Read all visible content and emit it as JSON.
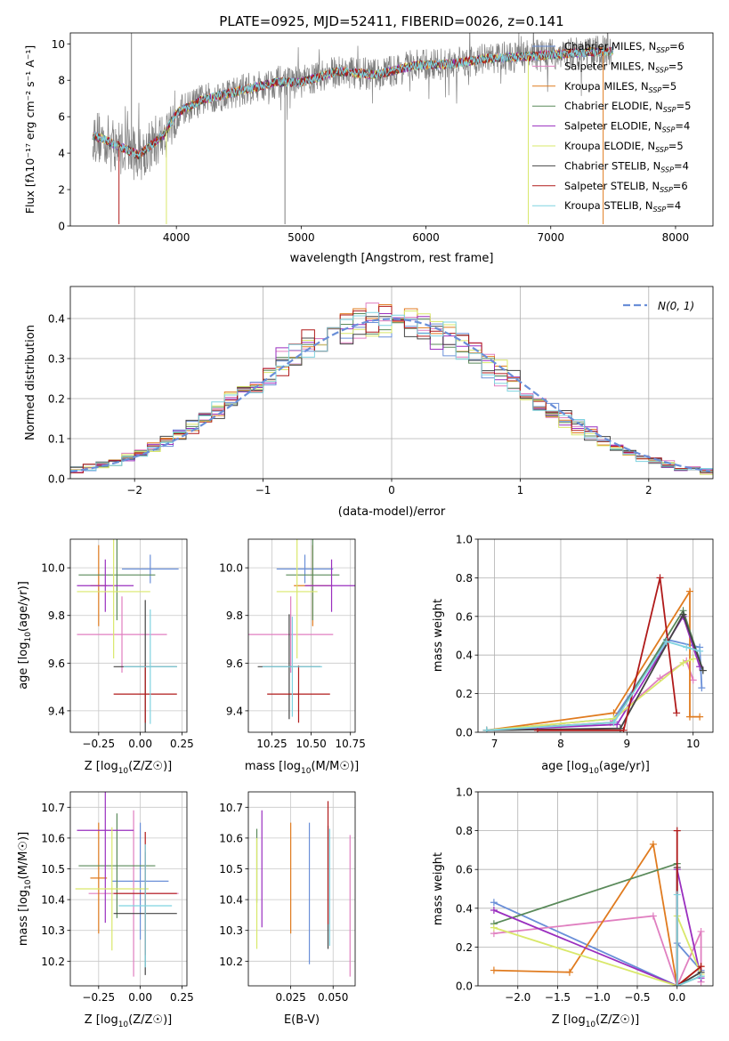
{
  "figure_title": "PLATE=0925, MJD=52411, FIBERID=0026, z=0.141",
  "colors": {
    "Chabrier MILES": "#6a8fd8",
    "Salpeter MILES": "#e07fc0",
    "Kroupa MILES": "#e07b1f",
    "Chabrier ELODIE": "#5a8a5a",
    "Salpeter ELODIE": "#9a2fbf",
    "Kroupa ELODIE": "#d9e86a",
    "Chabrier STELIB": "#444444",
    "Salpeter STELIB": "#b01a1a",
    "Kroupa STELIB": "#7fd3e0",
    "data": "#808080",
    "gaussian": "#6a8fd8"
  },
  "chart_data": [
    {
      "type": "line",
      "title": "PLATE=0925, MJD=52411, FIBERID=0026, z=0.141",
      "xlabel": "wavelength [Angstrom, rest frame]",
      "ylabel": "Flux [f_λ10^-17 erg cm^-2 s^-1 A^-1]",
      "xlim": [
        3150,
        8300
      ],
      "ylim": [
        0,
        10.6
      ],
      "xticks": [
        4000,
        5000,
        6000,
        7000,
        8000
      ],
      "yticks": [
        0,
        2,
        4,
        6,
        8,
        10
      ],
      "legend_position": "right",
      "legend": [
        {
          "base": "Chabrier MILES, N",
          "sub": "SSP",
          "tail": "=6"
        },
        {
          "base": "Salpeter MILES, N",
          "sub": "SSP",
          "tail": "=5"
        },
        {
          "base": "Kroupa MILES, N",
          "sub": "SSP",
          "tail": "=5"
        },
        {
          "base": "Chabrier ELODIE, N",
          "sub": "SSP",
          "tail": "=5"
        },
        {
          "base": "Salpeter ELODIE, N",
          "sub": "SSP",
          "tail": "=4"
        },
        {
          "base": "Kroupa ELODIE, N",
          "sub": "SSP",
          "tail": "=5"
        },
        {
          "base": "Chabrier STELIB, N",
          "sub": "SSP",
          "tail": "=4"
        },
        {
          "base": "Salpeter STELIB, N",
          "sub": "SSP",
          "tail": "=6"
        },
        {
          "base": "Kroupa STELIB, N",
          "sub": "SSP",
          "tail": "=4"
        }
      ],
      "continuum": {
        "x": [
          3330,
          3500,
          3700,
          3900,
          4000,
          4200,
          4500,
          4800,
          5000,
          5300,
          5600,
          5900,
          6200,
          6500,
          6800,
          7000,
          7200,
          7500
        ],
        "y": [
          5.0,
          4.5,
          3.9,
          5.0,
          6.2,
          6.9,
          7.4,
          7.9,
          7.9,
          8.5,
          8.3,
          8.8,
          8.9,
          9.2,
          9.3,
          9.4,
          9.5,
          9.6
        ]
      },
      "spikes": {
        "x": [
          3540,
          3640,
          3920,
          4870,
          6820,
          7420
        ],
        "y": [
          0.1,
          10.6,
          0.1,
          0.1,
          0.1,
          0.1
        ]
      }
    },
    {
      "type": "line",
      "xlabel": "(data-model)/error",
      "ylabel": "Normed distribution",
      "xlim": [
        -2.5,
        2.5
      ],
      "ylim": [
        0,
        0.48
      ],
      "xticks": [
        -2,
        -1,
        0,
        1,
        2
      ],
      "yticks": [
        0.0,
        0.1,
        0.2,
        0.3,
        0.4
      ],
      "grid": true,
      "legend_position": "top-right",
      "gaussian_label": "N(0, 1)",
      "bin_width": 0.1
    },
    {
      "type": "scatter",
      "xlabel": "Z [log10(Z/Z☉)]",
      "ylabel": "age  [log10(age/yr)]",
      "xlim": [
        -0.42,
        0.28
      ],
      "ylim": [
        9.31,
        10.12
      ],
      "xticks": [
        -0.25,
        0.0,
        0.25
      ],
      "ytick_values": [
        9.4,
        9.6,
        9.8,
        10.0
      ],
      "points": [
        {
          "model": "Chabrier MILES",
          "x": 0.06,
          "y": 9.995,
          "xerr": 0.17,
          "yerr": 0.06
        },
        {
          "model": "Salpeter MILES",
          "x": -0.11,
          "y": 9.72,
          "xerr": 0.27,
          "yerr": 0.16
        },
        {
          "model": "Kroupa MILES",
          "x": -0.25,
          "y": 9.925,
          "xerr": 0.05,
          "yerr": 0.17
        },
        {
          "model": "Chabrier ELODIE",
          "x": -0.14,
          "y": 9.97,
          "xerr": 0.23,
          "yerr": 0.19
        },
        {
          "model": "Salpeter ELODIE",
          "x": -0.21,
          "y": 9.925,
          "xerr": 0.17,
          "yerr": 0.11
        },
        {
          "model": "Kroupa ELODIE",
          "x": -0.16,
          "y": 9.9,
          "xerr": 0.22,
          "yerr": 0.28
        },
        {
          "model": "Chabrier STELIB",
          "x": 0.03,
          "y": 9.585,
          "xerr": 0.19,
          "yerr": 0.28
        },
        {
          "model": "Salpeter STELIB",
          "x": 0.03,
          "y": 9.47,
          "xerr": 0.19,
          "yerr": 0.12
        },
        {
          "model": "Kroupa STELIB",
          "x": 0.06,
          "y": 9.585,
          "xerr": 0.16,
          "yerr": 0.24
        }
      ]
    },
    {
      "type": "scatter",
      "xlabel": "mass [log10(M/M☉)]",
      "xlim": [
        10.1,
        10.78
      ],
      "ylim": [
        9.31,
        10.12
      ],
      "xticks": [
        10.25,
        10.5,
        10.75
      ],
      "ytick_values": [
        9.4,
        9.6,
        9.8,
        10.0
      ],
      "points": [
        {
          "model": "Chabrier MILES",
          "x": 10.46,
          "y": 9.995,
          "xerr": 0.18,
          "yerr": 0.06
        },
        {
          "model": "Salpeter MILES",
          "x": 10.37,
          "y": 9.72,
          "xerr": 0.27,
          "yerr": 0.16
        },
        {
          "model": "Kroupa MILES",
          "x": 10.51,
          "y": 9.925,
          "xerr": 0.12,
          "yerr": 0.17
        },
        {
          "model": "Chabrier ELODIE",
          "x": 10.51,
          "y": 9.97,
          "xerr": 0.17,
          "yerr": 0.19
        },
        {
          "model": "Salpeter ELODIE",
          "x": 10.63,
          "y": 9.925,
          "xerr": 0.17,
          "yerr": 0.11
        },
        {
          "model": "Kroupa ELODIE",
          "x": 10.41,
          "y": 9.9,
          "xerr": 0.13,
          "yerr": 0.28
        },
        {
          "model": "Chabrier STELIB",
          "x": 10.36,
          "y": 9.585,
          "xerr": 0.2,
          "yerr": 0.22
        },
        {
          "model": "Salpeter STELIB",
          "x": 10.42,
          "y": 9.47,
          "xerr": 0.2,
          "yerr": 0.12
        },
        {
          "model": "Kroupa STELIB",
          "x": 10.38,
          "y": 9.585,
          "xerr": 0.19,
          "yerr": 0.21
        }
      ]
    },
    {
      "type": "line",
      "xlabel": "age  [log10(age/yr)]",
      "ylabel": "mass weight",
      "xlim": [
        6.75,
        10.3
      ],
      "ylim": [
        0,
        1.0
      ],
      "xticks": [
        7,
        8,
        9,
        10
      ],
      "yticks": [
        0.0,
        0.2,
        0.4,
        0.6,
        0.8,
        1.0
      ],
      "grid": true,
      "series": [
        {
          "model": "Chabrier MILES",
          "x": [
            6.88,
            8.8,
            9.6,
            10.1,
            10.13
          ],
          "y": [
            0.01,
            0.07,
            0.48,
            0.44,
            0.23
          ]
        },
        {
          "model": "Salpeter MILES",
          "x": [
            6.88,
            8.75,
            9.5,
            9.9,
            10.0
          ],
          "y": [
            0.01,
            0.05,
            0.28,
            0.37,
            0.27
          ]
        },
        {
          "model": "Kroupa MILES",
          "x": [
            6.88,
            8.8,
            9.95,
            9.95,
            10.1
          ],
          "y": [
            0.01,
            0.1,
            0.73,
            0.08,
            0.08
          ]
        },
        {
          "model": "Chabrier ELODIE",
          "x": [
            6.88,
            8.8,
            9.85,
            10.15
          ],
          "y": [
            0.01,
            0.05,
            0.63,
            0.32
          ]
        },
        {
          "model": "Salpeter ELODIE",
          "x": [
            6.88,
            8.85,
            9.85,
            10.1
          ],
          "y": [
            0.01,
            0.04,
            0.6,
            0.34
          ]
        },
        {
          "model": "Kroupa ELODIE",
          "x": [
            6.88,
            8.8,
            9.85,
            10.0
          ],
          "y": [
            0.01,
            0.07,
            0.36,
            0.38
          ]
        },
        {
          "model": "Chabrier STELIB",
          "x": [
            6.88,
            8.9,
            9.85,
            10.15
          ],
          "y": [
            0.01,
            0.02,
            0.61,
            0.32
          ]
        },
        {
          "model": "Salpeter STELIB",
          "x": [
            7.65,
            8.95,
            9.5,
            9.75
          ],
          "y": [
            0.01,
            0.01,
            0.8,
            0.1
          ]
        },
        {
          "model": "Kroupa STELIB",
          "x": [
            6.88,
            8.8,
            9.6,
            9.9,
            10.1
          ],
          "y": [
            0.01,
            0.05,
            0.47,
            0.44,
            0.42
          ]
        }
      ]
    },
    {
      "type": "scatter",
      "xlabel": "Z [log10(Z/Z☉)]",
      "ylabel": "mass [log10(M/M☉)]",
      "xlim": [
        -0.42,
        0.28
      ],
      "ylim": [
        10.12,
        10.75
      ],
      "xticks": [
        -0.25,
        0.0,
        0.25
      ],
      "ytick_values": [
        10.2,
        10.3,
        10.4,
        10.5,
        10.6,
        10.7
      ],
      "points": [
        {
          "model": "Chabrier MILES",
          "x": 0.0,
          "y": 10.46,
          "xerr": 0.17,
          "yerr": 0.19
        },
        {
          "model": "Salpeter MILES",
          "x": -0.04,
          "y": 10.42,
          "xerr": 0.27,
          "yerr": 0.27
        },
        {
          "model": "Kroupa MILES",
          "x": -0.25,
          "y": 10.47,
          "xerr": 0.05,
          "yerr": 0.18
        },
        {
          "model": "Chabrier ELODIE",
          "x": -0.14,
          "y": 10.51,
          "xerr": 0.23,
          "yerr": 0.17
        },
        {
          "model": "Salpeter ELODIE",
          "x": -0.21,
          "y": 10.625,
          "xerr": 0.17,
          "yerr": 0.3
        },
        {
          "model": "Kroupa ELODIE",
          "x": -0.17,
          "y": 10.435,
          "xerr": 0.22,
          "yerr": 0.2
        },
        {
          "model": "Chabrier STELIB",
          "x": 0.03,
          "y": 10.355,
          "xerr": 0.19,
          "yerr": 0.2
        },
        {
          "model": "Salpeter STELIB",
          "x": 0.03,
          "y": 10.42,
          "xerr": 0.19,
          "yerr": 0.2
        },
        {
          "model": "Kroupa STELIB",
          "x": 0.03,
          "y": 10.38,
          "xerr": 0.16,
          "yerr": 0.2
        }
      ]
    },
    {
      "type": "scatter",
      "xlabel": "E(B-V)",
      "xlim": [
        0.0,
        0.063
      ],
      "ylim": [
        10.12,
        10.75
      ],
      "xticks": [
        0.025,
        0.05
      ],
      "ytick_values": [
        10.2,
        10.3,
        10.4,
        10.5,
        10.6,
        10.7
      ],
      "points": [
        {
          "model": "Chabrier MILES",
          "x": 0.036,
          "y": 10.42,
          "yerr": 0.23
        },
        {
          "model": "Salpeter MILES",
          "x": 0.06,
          "y": 10.38,
          "yerr": 0.23
        },
        {
          "model": "Kroupa MILES",
          "x": 0.025,
          "y": 10.47,
          "yerr": 0.18
        },
        {
          "model": "Chabrier ELODIE",
          "x": 0.005,
          "y": 10.51,
          "yerr": 0.12
        },
        {
          "model": "Salpeter ELODIE",
          "x": 0.008,
          "y": 10.5,
          "yerr": 0.19
        },
        {
          "model": "Kroupa ELODIE",
          "x": 0.005,
          "y": 10.42,
          "yerr": 0.18
        },
        {
          "model": "Chabrier STELIB",
          "x": 0.047,
          "y": 10.44,
          "yerr": 0.2
        },
        {
          "model": "Salpeter STELIB",
          "x": 0.047,
          "y": 10.52,
          "yerr": 0.2
        },
        {
          "model": "Kroupa STELIB",
          "x": 0.048,
          "y": 10.44,
          "yerr": 0.19
        }
      ]
    },
    {
      "type": "line",
      "xlabel": "Z [log10(Z/Z☉)]",
      "ylabel": "mass weight",
      "xlim": [
        -2.5,
        0.45
      ],
      "ylim": [
        0,
        1.0
      ],
      "xticks": [
        -2.0,
        -1.5,
        -1.0,
        -0.5,
        0.0
      ],
      "yticks": [
        0.0,
        0.2,
        0.4,
        0.6,
        0.8,
        1.0
      ],
      "grid": true,
      "series": [
        {
          "model": "Chabrier MILES",
          "x": [
            -2.3,
            0.0,
            0.0,
            0.3
          ],
          "y": [
            0.43,
            0.0,
            0.22,
            0.08
          ]
        },
        {
          "model": "Salpeter MILES",
          "x": [
            -2.3,
            -0.3,
            0.0,
            0.3,
            0.3
          ],
          "y": [
            0.27,
            0.36,
            0.0,
            0.28,
            0.02
          ]
        },
        {
          "model": "Kroupa MILES",
          "x": [
            -2.3,
            -1.35,
            -0.3,
            0.0,
            0.3
          ],
          "y": [
            0.08,
            0.07,
            0.73,
            0.0,
            0.1
          ]
        },
        {
          "model": "Chabrier ELODIE",
          "x": [
            -2.3,
            0.0,
            0.0,
            0.3
          ],
          "y": [
            0.32,
            0.63,
            0.0,
            0.05
          ]
        },
        {
          "model": "Salpeter ELODIE",
          "x": [
            -2.3,
            0.0,
            0.0,
            0.3
          ],
          "y": [
            0.39,
            0.0,
            0.6,
            0.04
          ]
        },
        {
          "model": "Kroupa ELODIE",
          "x": [
            -2.3,
            0.0,
            0.0,
            0.3
          ],
          "y": [
            0.3,
            0.0,
            0.36,
            0.06
          ]
        },
        {
          "model": "Chabrier STELIB",
          "x": [
            0.0,
            0.0,
            0.3
          ],
          "y": [
            0.61,
            0.0,
            0.07
          ]
        },
        {
          "model": "Salpeter STELIB",
          "x": [
            0.0,
            0.0,
            0.3
          ],
          "y": [
            0.8,
            0.0,
            0.1
          ]
        },
        {
          "model": "Kroupa STELIB",
          "x": [
            0.0,
            0.0,
            0.3
          ],
          "y": [
            0.47,
            0.0,
            0.05
          ]
        }
      ]
    }
  ]
}
